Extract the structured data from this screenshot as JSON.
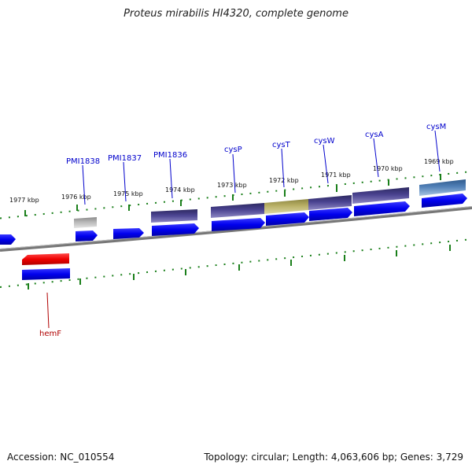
{
  "header": {
    "title": "Proteus mirabilis HI4320, complete genome"
  },
  "footer": {
    "accession": "Accession: NC_010554",
    "summary": "Topology: circular; Length: 4,063,606 bp; Genes: 3,729"
  },
  "ticks": [
    "1969 kbp",
    "1970 kbp",
    "1971 kbp",
    "1972 kbp",
    "1973 kbp",
    "1974 kbp",
    "1975 kbp",
    "1976 kbp",
    "1977 kbp"
  ],
  "gene_labels": {
    "pmi1838": "PMI1838",
    "pmi1837": "PMI1837",
    "pmi1836": "PMI1836",
    "cysP": "cysP",
    "cysT": "cysT",
    "cysW": "cysW",
    "cysA": "cysA",
    "cysM": "cysM",
    "hemF": "hemF"
  },
  "colors": {
    "backbone": "#777777",
    "tick": "#1a7f1a",
    "gene_label": "#0000cc",
    "reverse_label": "#b00000",
    "cds": "#0000ee",
    "operon": "#47408a",
    "cysT_feature": "#b6ad62",
    "cysM_feature": "#4f7fb4",
    "pmi1838_feature": "#b8b8b8",
    "hemF_feature": "#ee0000"
  }
}
